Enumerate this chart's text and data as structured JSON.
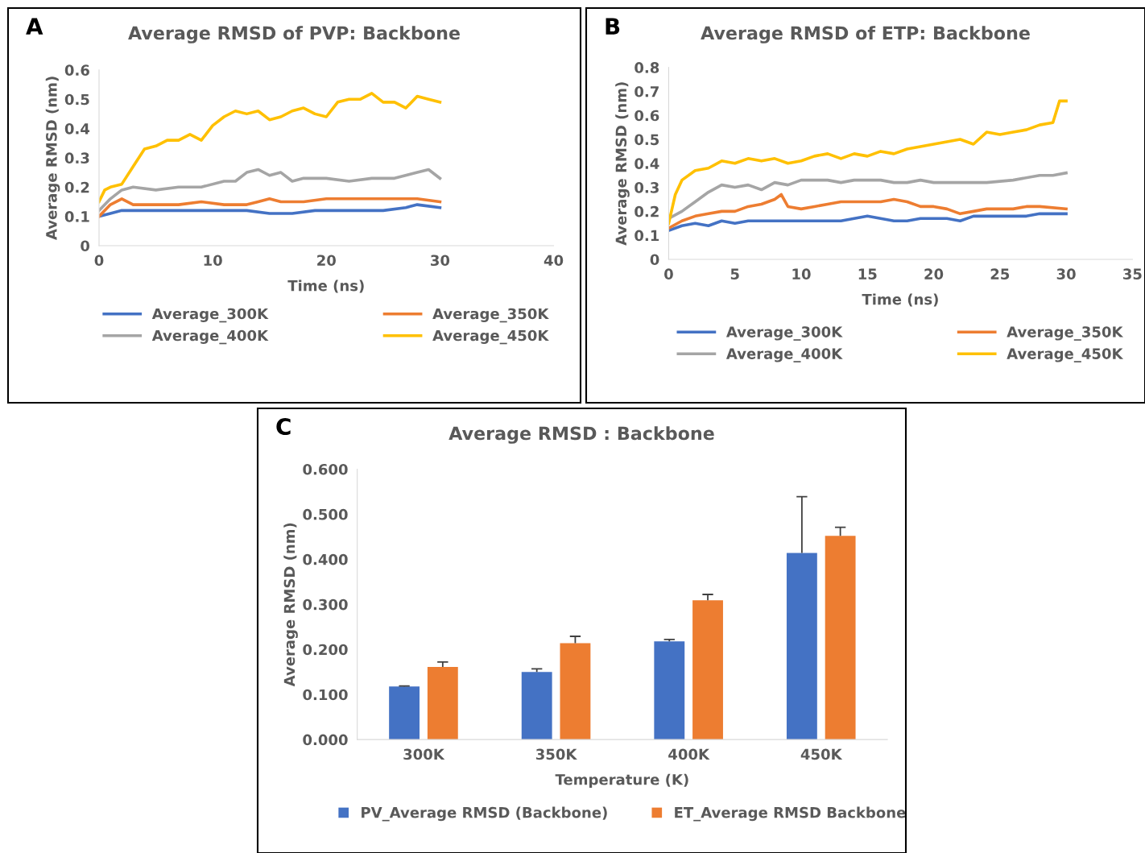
{
  "chart_data": [
    {
      "type": "line",
      "title": "Average RMSD of PVP: Backbone",
      "xlabel": "Time (ns)",
      "ylabel": "Average RMSD (nm)",
      "annotations": [
        "A"
      ],
      "xlim": [
        0,
        40
      ],
      "xticks": [
        0,
        10,
        20,
        30,
        40
      ],
      "ylim": [
        0,
        0.6
      ],
      "yticks": [
        0,
        0.1,
        0.2,
        0.3,
        0.4,
        0.5,
        0.6
      ],
      "legend": "bottom",
      "grid": false,
      "series": [
        {
          "name": "Average_300K",
          "color": "#4472c4",
          "x": [
            0,
            1,
            2,
            3,
            5,
            7,
            9,
            11,
            13,
            15,
            17,
            19,
            21,
            23,
            25,
            27,
            28,
            30
          ],
          "values": [
            0.1,
            0.11,
            0.12,
            0.12,
            0.12,
            0.12,
            0.12,
            0.12,
            0.12,
            0.11,
            0.11,
            0.12,
            0.12,
            0.12,
            0.12,
            0.13,
            0.14,
            0.13
          ]
        },
        {
          "name": "Average_350K",
          "color": "#ed7d31",
          "x": [
            0,
            1,
            2,
            3,
            5,
            7,
            9,
            11,
            13,
            14,
            15,
            16,
            18,
            20,
            22,
            24,
            26,
            28,
            30
          ],
          "values": [
            0.1,
            0.14,
            0.16,
            0.14,
            0.14,
            0.14,
            0.15,
            0.14,
            0.14,
            0.15,
            0.16,
            0.15,
            0.15,
            0.16,
            0.16,
            0.16,
            0.16,
            0.16,
            0.15
          ]
        },
        {
          "name": "Average_400K",
          "color": "#a5a5a5",
          "x": [
            0,
            1,
            2,
            3,
            5,
            7,
            9,
            11,
            12,
            13,
            14,
            15,
            16,
            17,
            18,
            20,
            22,
            24,
            26,
            28,
            29,
            30
          ],
          "values": [
            0.12,
            0.16,
            0.19,
            0.2,
            0.19,
            0.2,
            0.2,
            0.22,
            0.22,
            0.25,
            0.26,
            0.24,
            0.25,
            0.22,
            0.23,
            0.23,
            0.22,
            0.23,
            0.23,
            0.25,
            0.26,
            0.23
          ]
        },
        {
          "name": "Average_450K",
          "color": "#ffc000",
          "x": [
            0,
            0.5,
            1,
            2,
            3,
            4,
            5,
            6,
            7,
            8,
            9,
            10,
            11,
            12,
            13,
            14,
            15,
            16,
            17,
            18,
            19,
            20,
            21,
            22,
            23,
            24,
            25,
            26,
            27,
            28,
            29,
            30
          ],
          "values": [
            0.15,
            0.19,
            0.2,
            0.21,
            0.27,
            0.33,
            0.34,
            0.36,
            0.36,
            0.38,
            0.36,
            0.41,
            0.44,
            0.46,
            0.45,
            0.46,
            0.43,
            0.44,
            0.46,
            0.47,
            0.45,
            0.44,
            0.49,
            0.5,
            0.5,
            0.52,
            0.49,
            0.49,
            0.47,
            0.51,
            0.5,
            0.49
          ]
        }
      ]
    },
    {
      "type": "line",
      "title": "Average RMSD of ETP: Backbone",
      "xlabel": "Time (ns)",
      "ylabel": "Average RMSD (nm)",
      "annotations": [
        "B"
      ],
      "xlim": [
        0,
        35
      ],
      "xticks": [
        0,
        5,
        10,
        15,
        20,
        25,
        30,
        35
      ],
      "ylim": [
        0,
        0.8
      ],
      "yticks": [
        0,
        0.1,
        0.2,
        0.3,
        0.4,
        0.5,
        0.6,
        0.7,
        0.8
      ],
      "legend": "bottom",
      "grid": false,
      "series": [
        {
          "name": "Average_300K",
          "color": "#4472c4",
          "x": [
            0,
            1,
            2,
            3,
            4,
            5,
            6,
            7,
            8,
            9,
            10,
            11,
            12,
            13,
            14,
            15,
            16,
            17,
            18,
            19,
            20,
            21,
            22,
            23,
            24,
            25,
            26,
            27,
            28,
            30
          ],
          "values": [
            0.12,
            0.14,
            0.15,
            0.14,
            0.16,
            0.15,
            0.16,
            0.16,
            0.16,
            0.16,
            0.16,
            0.16,
            0.16,
            0.16,
            0.17,
            0.18,
            0.17,
            0.16,
            0.16,
            0.17,
            0.17,
            0.17,
            0.16,
            0.18,
            0.18,
            0.18,
            0.18,
            0.18,
            0.19,
            0.19
          ]
        },
        {
          "name": "Average_350K",
          "color": "#ed7d31",
          "x": [
            0,
            1,
            2,
            3,
            4,
            5,
            6,
            7,
            8,
            8.5,
            9,
            10,
            11,
            12,
            13,
            14,
            15,
            16,
            17,
            18,
            19,
            20,
            21,
            22,
            23,
            24,
            25,
            26,
            27,
            28,
            30
          ],
          "values": [
            0.13,
            0.16,
            0.18,
            0.19,
            0.2,
            0.2,
            0.22,
            0.23,
            0.25,
            0.27,
            0.22,
            0.21,
            0.22,
            0.23,
            0.24,
            0.24,
            0.24,
            0.24,
            0.25,
            0.24,
            0.22,
            0.22,
            0.21,
            0.19,
            0.2,
            0.21,
            0.21,
            0.21,
            0.22,
            0.22,
            0.21
          ]
        },
        {
          "name": "Average_400K",
          "color": "#a5a5a5",
          "x": [
            0,
            1,
            2,
            3,
            4,
            5,
            6,
            7,
            8,
            9,
            10,
            11,
            12,
            13,
            14,
            15,
            16,
            17,
            18,
            19,
            20,
            22,
            24,
            26,
            28,
            29,
            30
          ],
          "values": [
            0.17,
            0.2,
            0.24,
            0.28,
            0.31,
            0.3,
            0.31,
            0.29,
            0.32,
            0.31,
            0.33,
            0.33,
            0.33,
            0.32,
            0.33,
            0.33,
            0.33,
            0.32,
            0.32,
            0.33,
            0.32,
            0.32,
            0.32,
            0.33,
            0.35,
            0.35,
            0.36
          ]
        },
        {
          "name": "Average_450K",
          "color": "#ffc000",
          "x": [
            0,
            0.5,
            1,
            2,
            3,
            4,
            5,
            6,
            7,
            8,
            9,
            10,
            11,
            12,
            13,
            14,
            15,
            16,
            17,
            18,
            19,
            20,
            21,
            22,
            23,
            24,
            25,
            26,
            27,
            28,
            29,
            29.5,
            30
          ],
          "values": [
            0.15,
            0.27,
            0.33,
            0.37,
            0.38,
            0.41,
            0.4,
            0.42,
            0.41,
            0.42,
            0.4,
            0.41,
            0.43,
            0.44,
            0.42,
            0.44,
            0.43,
            0.45,
            0.44,
            0.46,
            0.47,
            0.48,
            0.49,
            0.5,
            0.48,
            0.53,
            0.52,
            0.53,
            0.54,
            0.56,
            0.57,
            0.66,
            0.66
          ]
        }
      ]
    },
    {
      "type": "bar",
      "title": "Average RMSD : Backbone",
      "xlabel": "Temperature (K)",
      "ylabel": "Average RMSD (nm)",
      "annotations": [
        "C"
      ],
      "categories": [
        "300K",
        "350K",
        "400K",
        "450K"
      ],
      "ylim": [
        0,
        0.6
      ],
      "yticks": [
        {
          "value": 0,
          "label": "0.000"
        },
        {
          "value": 0.1,
          "label": "0.100"
        },
        {
          "value": 0.2,
          "label": "0.200"
        },
        {
          "value": 0.3,
          "label": "0.300"
        },
        {
          "value": 0.4,
          "label": "0.400"
        },
        {
          "value": 0.5,
          "label": "0.500"
        },
        {
          "value": 0.6,
          "label": "0.600"
        }
      ],
      "legend": "bottom",
      "grid": false,
      "series": [
        {
          "name": "PV_Average RMSD (Backbone)",
          "color": "#4472c4",
          "values": [
            0.118,
            0.15,
            0.218,
            0.414
          ],
          "errors": [
            [
              0.118,
              0.119
            ],
            [
              0.15,
              0.157
            ],
            [
              0.218,
              0.222
            ],
            [
              0.414,
              0.539
            ]
          ]
        },
        {
          "name": "ET_Average RMSD Backbone",
          "color": "#ed7d31",
          "values": [
            0.161,
            0.214,
            0.309,
            0.452
          ],
          "errors": [
            [
              0.161,
              0.172
            ],
            [
              0.214,
              0.229
            ],
            [
              0.309,
              0.322
            ],
            [
              0.452,
              0.471
            ]
          ]
        }
      ]
    }
  ]
}
